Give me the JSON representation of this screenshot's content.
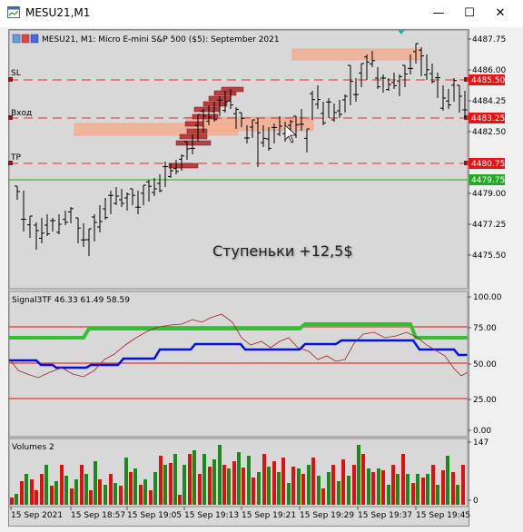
{
  "window": {
    "title": "MESU21,M1",
    "buttons": {
      "minimize": "—",
      "maximize": "☐",
      "close": "✕"
    }
  },
  "main_chart": {
    "header": "MESU21, M1:  Micro E-mini S&P 500 ($5): September 2021",
    "line_labels": {
      "sl": "SL",
      "entry": "Вход",
      "tp": "TP"
    },
    "annotation": "Ступеньки +12,5$",
    "price_ticks": [
      "4487.75",
      "4486.00",
      "4484.25",
      "4482.50",
      "4479.00",
      "4477.25",
      "4475.50"
    ],
    "price_badges": [
      {
        "label": "4485.50",
        "color": "#e11"
      },
      {
        "label": "4483.25",
        "color": "#e11"
      },
      {
        "label": "4480.75",
        "color": "#e11"
      },
      {
        "label": "4479.75",
        "color": "#22aa22"
      }
    ],
    "colors": {
      "sl_line": "#e03030",
      "tp_line": "#e03030",
      "current_price_line": "#22aa22",
      "zone": "#f4b090",
      "level_bar": "#b84040"
    }
  },
  "indicator": {
    "label": "Signal3TF 46.33 61.49 58.59",
    "ticks": [
      "100.00",
      "75.00",
      "50.00",
      "25.00",
      "0.00"
    ],
    "colors": {
      "green_line": "#30c030",
      "blue_line": "#0010e0",
      "thin_line": "#a02020",
      "level_lines": "#e01010"
    }
  },
  "volumes": {
    "label": "Volumes 2",
    "ticks": [
      "147",
      "0"
    ],
    "colors": {
      "up": "#1a8a1a",
      "down": "#e01010"
    }
  },
  "time_axis": [
    "15 Sep 2021",
    "15 Sep 18:57",
    "15 Sep 19:05",
    "15 Sep 19:13",
    "15 Sep 19:21",
    "15 Sep 19:29",
    "15 Sep 19:37",
    "15 Sep 19:45"
  ]
}
